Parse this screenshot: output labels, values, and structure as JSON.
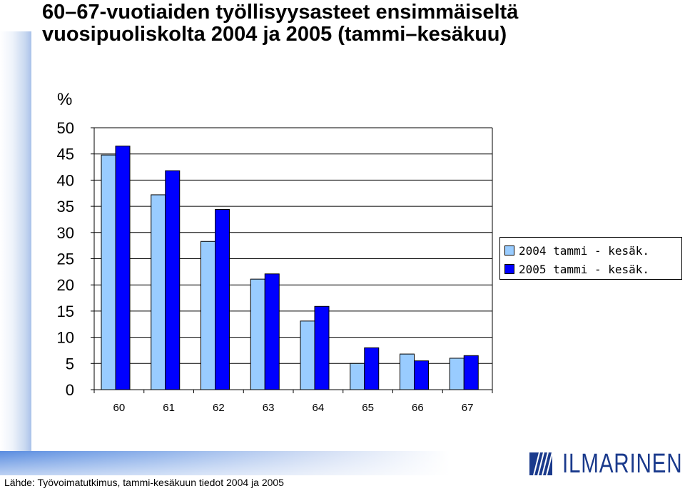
{
  "title_line1": "60–67-vuotiaiden työllisyysasteet ensimmäiseltä",
  "title_line2": "vuosipuoliskolta 2004 ja 2005 (tammi–kesäkuu)",
  "source": "Lähde: Työvoimatutkimus, tammi-kesäkuun tiedot 2004 ja 2005",
  "logo_text": "ILMARINEN",
  "colors": {
    "series_2004": "#99ccff",
    "series_2005": "#0000ff",
    "accent": "#1a3a8c"
  },
  "chart_data": {
    "type": "bar",
    "title": "60–67-vuotiaiden työllisyysasteet ensimmäiseltä vuosipuoliskolta 2004 ja 2005 (tammi–kesäkuu)",
    "ylabel": "%",
    "xlabel": "",
    "ylim": [
      0,
      50
    ],
    "yticks": [
      0,
      5,
      10,
      15,
      20,
      25,
      30,
      35,
      40,
      45,
      50
    ],
    "grid": true,
    "legend": "right",
    "categories": [
      "60",
      "61",
      "62",
      "63",
      "64",
      "65",
      "66",
      "67"
    ],
    "series": [
      {
        "name": "2004 tammi - kesäk.",
        "color": "#99ccff",
        "values": [
          44.8,
          37.2,
          28.3,
          21.1,
          13.1,
          5.0,
          6.8,
          6.0
        ]
      },
      {
        "name": "2005 tammi - kesäk.",
        "color": "#0000ff",
        "values": [
          46.5,
          41.8,
          34.4,
          22.1,
          15.9,
          8.0,
          5.5,
          6.5
        ]
      }
    ]
  }
}
